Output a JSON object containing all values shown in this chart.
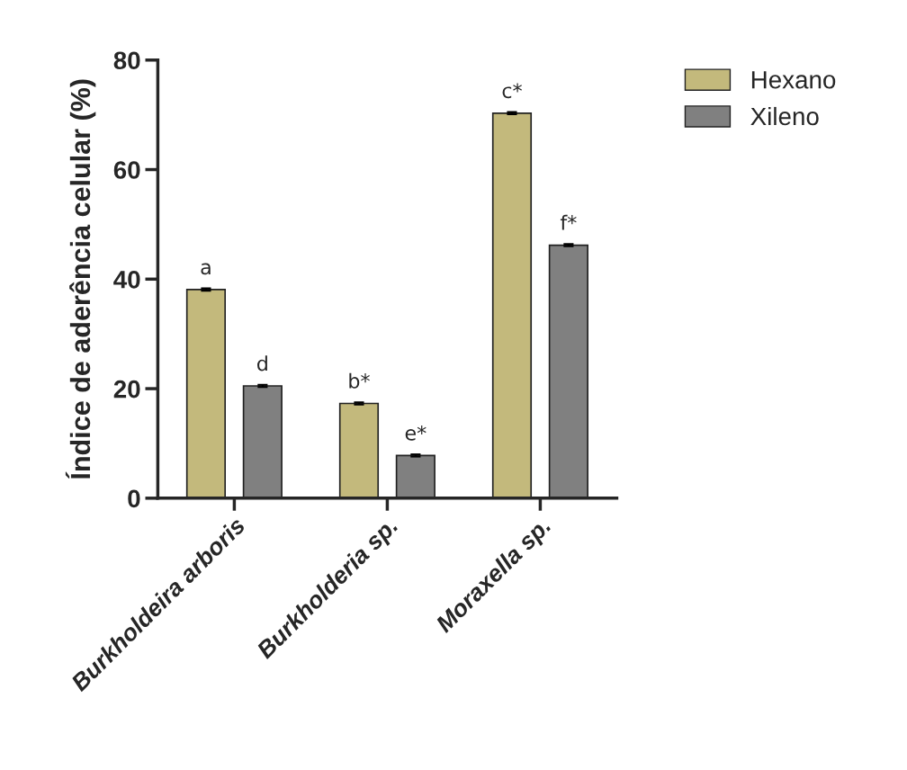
{
  "chart_data": {
    "type": "bar",
    "ylabel": "Índice de aderência celular (%)",
    "categories": [
      "Burkholdeira arboris",
      "Burkholderia sp.",
      "Moraxella sp."
    ],
    "series": [
      {
        "name": "Hexano",
        "color": "#c3b97c",
        "values": [
          38.1,
          17.3,
          70.3
        ],
        "errors": [
          0.2,
          0.2,
          0.2
        ],
        "value_labels": [
          "a",
          "b*",
          "c*"
        ]
      },
      {
        "name": "Xileno",
        "color": "#808080",
        "values": [
          20.5,
          7.8,
          46.2
        ],
        "errors": [
          0.2,
          0.2,
          0.2
        ],
        "value_labels": [
          "d",
          "e*",
          "f*"
        ]
      }
    ],
    "ylim": [
      0,
      80
    ],
    "yticks": [
      0,
      20,
      40,
      60,
      80
    ],
    "grid": false,
    "legend": "top right"
  }
}
